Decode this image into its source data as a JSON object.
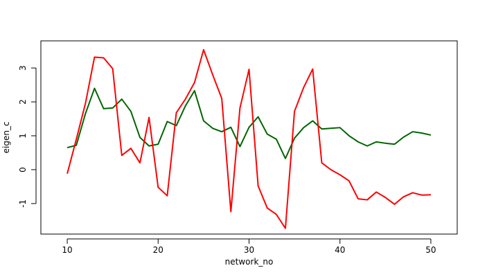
{
  "chart_data": {
    "type": "line",
    "title": "",
    "xlabel": "network_no",
    "ylabel": "eigen_c",
    "xlim": [
      7.1,
      52.9
    ],
    "ylim": [
      -1.9,
      3.8
    ],
    "x_ticks": [
      10,
      20,
      30,
      40,
      50
    ],
    "y_ticks": [
      -1,
      0,
      1,
      2,
      3
    ],
    "x_tick_labels": [
      "10",
      "20",
      "30",
      "40",
      "50"
    ],
    "y_tick_labels": [
      "-1",
      "0",
      "1",
      "2",
      "3"
    ],
    "grid": false,
    "legend": "none",
    "x": [
      10,
      11,
      12,
      13,
      14,
      15,
      16,
      17,
      18,
      19,
      20,
      21,
      22,
      23,
      24,
      25,
      26,
      27,
      28,
      29,
      30,
      31,
      32,
      33,
      34,
      35,
      36,
      37,
      38,
      39,
      40,
      41,
      42,
      43,
      44,
      45,
      46,
      47,
      48,
      49,
      50
    ],
    "series": [
      {
        "color": "#006400",
        "values": [
          0.65,
          0.72,
          1.65,
          2.4,
          1.8,
          1.82,
          2.08,
          1.72,
          0.95,
          0.7,
          0.75,
          1.42,
          1.3,
          1.88,
          2.33,
          1.44,
          1.22,
          1.12,
          1.25,
          0.68,
          1.25,
          1.56,
          1.05,
          0.9,
          0.33,
          0.93,
          1.24,
          1.44,
          1.2,
          1.22,
          1.24,
          1.0,
          0.82,
          0.7,
          0.82,
          0.78,
          0.75,
          0.96,
          1.12,
          1.08,
          1.02
        ]
      },
      {
        "color": "#ff0000",
        "values": [
          -0.12,
          0.9,
          1.95,
          3.32,
          3.3,
          2.98,
          0.42,
          0.63,
          0.2,
          1.54,
          -0.52,
          -0.77,
          1.68,
          2.08,
          2.57,
          3.54,
          2.8,
          2.1,
          -1.24,
          1.82,
          2.96,
          -0.48,
          -1.13,
          -1.32,
          -1.73,
          1.72,
          2.42,
          2.97,
          0.2,
          0.0,
          -0.15,
          -0.33,
          -0.86,
          -0.89,
          -0.66,
          -0.82,
          -1.02,
          -0.8,
          -0.68,
          -0.75,
          -0.74
        ]
      }
    ]
  }
}
